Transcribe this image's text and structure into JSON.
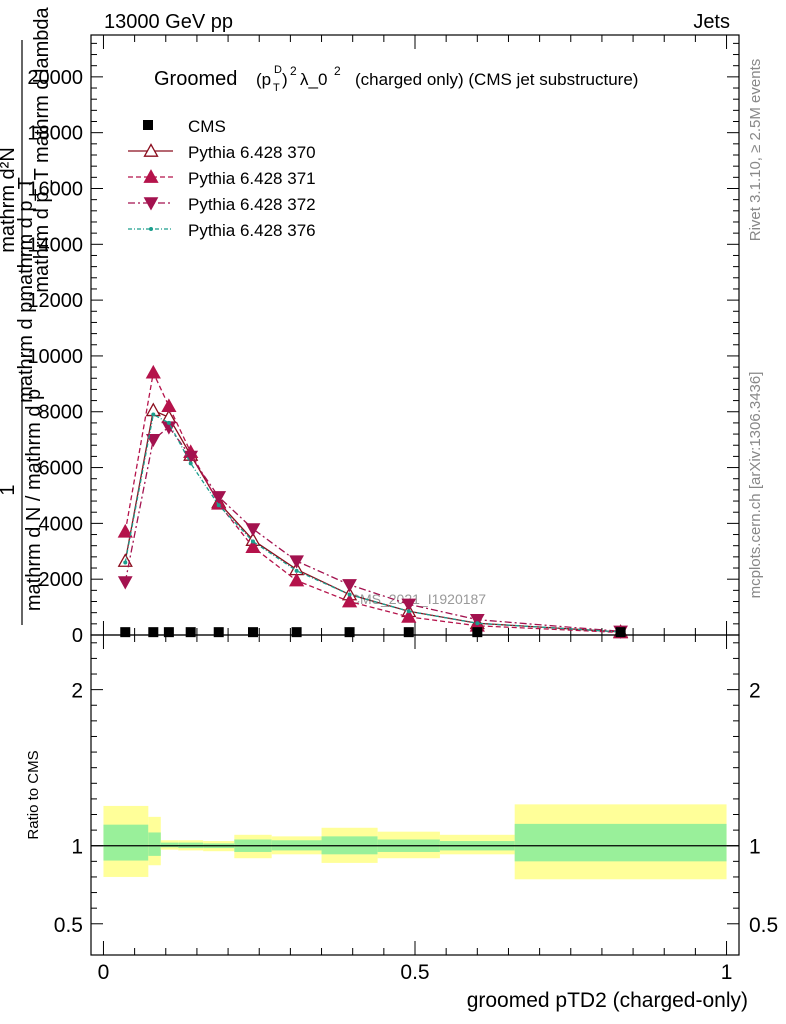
{
  "header": {
    "energy_label": "13000 GeV pp",
    "process_label": "Jets"
  },
  "side_labels": {
    "rivet": "Rivet 3.1.10, ≥ 2.5M events",
    "mcplots": "mcplots.cern.ch [arXiv:1306.3436]"
  },
  "watermark": "CMS_2021_I1920187",
  "chart_data": [
    {
      "type": "line",
      "title_main": "Groomed",
      "title_rest": "(charged only) (CMS jet substructure)",
      "ylabel_frac_num": "1",
      "ylabel_frac_den": "mathrm d N / mathrm d p",
      "ylabel_garbled_1": "mathrm d²N",
      "ylabel_garbled_2": "mathrm d p_T mathrm d lambda",
      "ylabel_garbled_3": "mathrm d pmathrm d p_T",
      "ylim": [
        0,
        21500
      ],
      "y_ticks": [
        0,
        2000,
        4000,
        6000,
        8000,
        10000,
        12000,
        14000,
        16000,
        18000,
        20000
      ],
      "y_tick_labels": [
        "0",
        "2000",
        "4000",
        "6000",
        "8000",
        "10000",
        "12000",
        "14000",
        "16000",
        "18000",
        "20000"
      ],
      "xlim": [
        -0.02,
        1.02
      ],
      "legend_position": "top-left",
      "cms": {
        "name": "CMS",
        "x": [
          0.035,
          0.08,
          0.105,
          0.14,
          0.185,
          0.24,
          0.31,
          0.395,
          0.49,
          0.6,
          0.83
        ],
        "y": [
          30,
          30,
          30,
          30,
          30,
          30,
          30,
          30,
          30,
          30,
          30
        ]
      },
      "series": [
        {
          "name": "Pythia 6.428 370",
          "color": "#8b0e1e",
          "marker": "triangle-up-open",
          "dash": "",
          "x": [
            0.035,
            0.08,
            0.105,
            0.14,
            0.185,
            0.24,
            0.31,
            0.395,
            0.49,
            0.6,
            0.83
          ],
          "y": [
            2650,
            8050,
            7800,
            6450,
            4750,
            3400,
            2350,
            1450,
            850,
            420,
            110
          ]
        },
        {
          "name": "Pythia 6.428 371",
          "color": "#b5134b",
          "marker": "triangle-up",
          "dash": "5,3",
          "x": [
            0.035,
            0.08,
            0.105,
            0.14,
            0.185,
            0.24,
            0.31,
            0.395,
            0.49,
            0.6,
            0.83
          ],
          "y": [
            3700,
            9400,
            8200,
            6550,
            4700,
            3150,
            1950,
            1200,
            650,
            330,
            90
          ]
        },
        {
          "name": "Pythia 6.428 372",
          "color": "#a3124f",
          "marker": "triangle-down",
          "dash": "7,3,2,3",
          "x": [
            0.035,
            0.08,
            0.105,
            0.14,
            0.185,
            0.24,
            0.31,
            0.395,
            0.49,
            0.6,
            0.83
          ],
          "y": [
            1900,
            7000,
            7450,
            6400,
            4950,
            3800,
            2650,
            1800,
            1100,
            550,
            130
          ]
        },
        {
          "name": "Pythia 6.428 376",
          "color": "#1a9e8c",
          "marker": "dot",
          "dash": "4,2,1,2",
          "x": [
            0.035,
            0.08,
            0.105,
            0.14,
            0.185,
            0.24,
            0.31,
            0.395,
            0.49,
            0.6,
            0.83
          ],
          "y": [
            2600,
            7900,
            7600,
            6150,
            4650,
            3350,
            2300,
            1450,
            850,
            420,
            110
          ]
        }
      ]
    },
    {
      "type": "area",
      "ylabel": "Ratio to CMS",
      "ylim": [
        0.3,
        2.35
      ],
      "y_ticks": [
        0.5,
        1,
        2
      ],
      "y_tick_labels": [
        "0.5",
        "1",
        "2"
      ],
      "xlim": [
        -0.02,
        1.02
      ],
      "x_ticks": [
        0,
        0.5,
        1
      ],
      "x_tick_labels": [
        "0",
        "0.5",
        "1"
      ],
      "xlabel": "groomed pTD2 (charged-only)",
      "bins": [
        {
          "x0": 0.0,
          "x1": 0.072,
          "inner": [
            0.905,
            1.135
          ],
          "outer": [
            0.8,
            1.255
          ]
        },
        {
          "x0": 0.072,
          "x1": 0.092,
          "inner": [
            0.935,
            1.085
          ],
          "outer": [
            0.875,
            1.185
          ]
        },
        {
          "x0": 0.092,
          "x1": 0.12,
          "inner": [
            0.99,
            1.02
          ],
          "outer": [
            0.975,
            1.035
          ]
        },
        {
          "x0": 0.12,
          "x1": 0.16,
          "inner": [
            0.985,
            1.02
          ],
          "outer": [
            0.97,
            1.035
          ]
        },
        {
          "x0": 0.16,
          "x1": 0.21,
          "inner": [
            0.985,
            1.015
          ],
          "outer": [
            0.965,
            1.03
          ]
        },
        {
          "x0": 0.21,
          "x1": 0.27,
          "inner": [
            0.96,
            1.04
          ],
          "outer": [
            0.92,
            1.07
          ]
        },
        {
          "x0": 0.27,
          "x1": 0.35,
          "inner": [
            0.97,
            1.035
          ],
          "outer": [
            0.945,
            1.06
          ]
        },
        {
          "x0": 0.35,
          "x1": 0.44,
          "inner": [
            0.945,
            1.06
          ],
          "outer": [
            0.89,
            1.115
          ]
        },
        {
          "x0": 0.44,
          "x1": 0.54,
          "inner": [
            0.96,
            1.04
          ],
          "outer": [
            0.92,
            1.09
          ]
        },
        {
          "x0": 0.54,
          "x1": 0.66,
          "inner": [
            0.97,
            1.03
          ],
          "outer": [
            0.945,
            1.07
          ]
        },
        {
          "x0": 0.66,
          "x1": 1.0,
          "inner": [
            0.9,
            1.14
          ],
          "outer": [
            0.785,
            1.265
          ]
        }
      ],
      "colors": {
        "inner": "#99f09a",
        "outer": "#ffff99",
        "reference": "#000000"
      }
    }
  ]
}
